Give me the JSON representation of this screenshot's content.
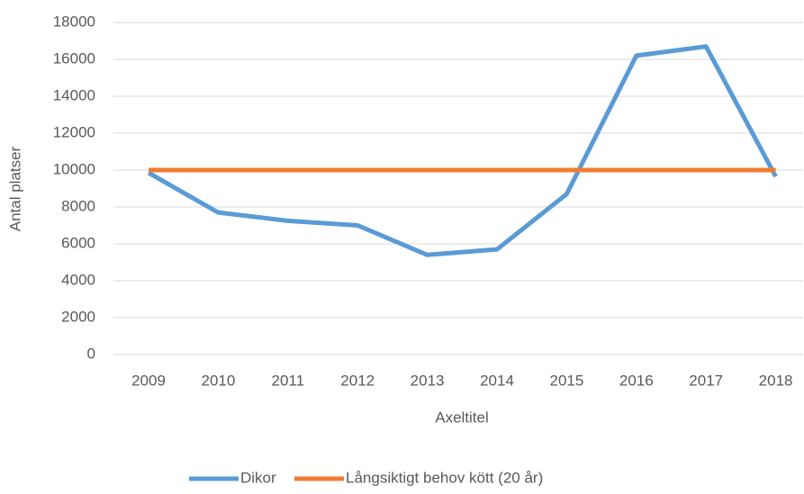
{
  "chart_data": {
    "type": "line",
    "categories": [
      "2009",
      "2010",
      "2011",
      "2012",
      "2013",
      "2014",
      "2015",
      "2016",
      "2017",
      "2018"
    ],
    "series": [
      {
        "name": "Dikor",
        "color": "#5b9bd5",
        "values": [
          9850,
          7700,
          7250,
          7000,
          5400,
          5700,
          8700,
          16200,
          16700,
          9650
        ]
      },
      {
        "name": "Långsiktigt behov kött (20 år)",
        "color": "#ed7d31",
        "values": [
          10000,
          10000,
          10000,
          10000,
          10000,
          10000,
          10000,
          10000,
          10000,
          10000
        ]
      }
    ],
    "y_label": "Antal platser",
    "x_label": "Axeltitel",
    "ylim": [
      0,
      18000
    ],
    "yticks": [
      0,
      2000,
      4000,
      6000,
      8000,
      10000,
      12000,
      14000,
      16000,
      18000
    ],
    "grid": true,
    "legend": "bottom"
  }
}
